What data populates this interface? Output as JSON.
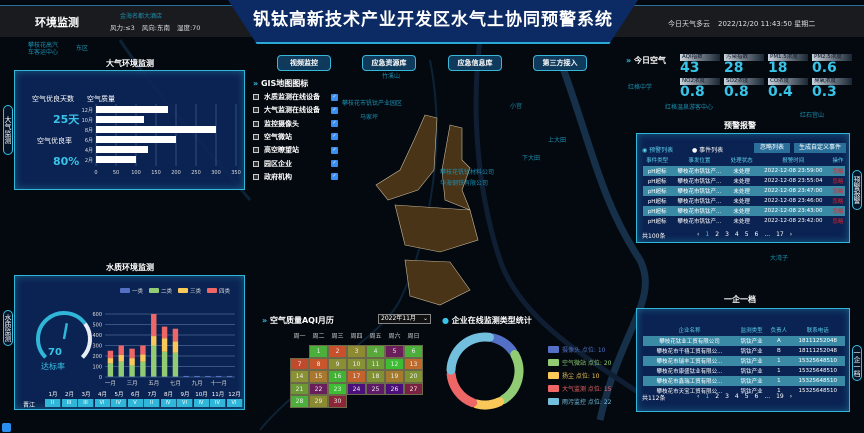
{
  "header": {
    "section": "环境监测",
    "wind_force": "风力:≤3",
    "wind_dir": "风向:东南",
    "humidity": "湿度:70",
    "title": "钒钛高新技术产业开发区水气土协同预警系统",
    "weather": "今日天气多云",
    "datetime": "2022/12/20 11:43:50 星期二"
  },
  "map_labels": [
    "攀枝花高汽车客运中心",
    "东区",
    "金海名都大酒店",
    "红格中学",
    "红格温泉游客中心",
    "攀枝花市钒钛产业园区",
    "红石宫山",
    "竹溪山",
    "小宫",
    "上大田",
    "下大田",
    "马家坪",
    "大湾子",
    "攀枝花钒钛材料公司",
    "华海钢铁有限公司"
  ],
  "top_buttons": [
    "视频监控",
    "应急资源库",
    "应急信息库",
    "第三方接入"
  ],
  "gis": {
    "title": "GIS地图图标",
    "items": [
      "水质监测在线设备",
      "大气监测在线设备",
      "监控摄像头",
      "空气微站",
      "高空瞭望站",
      "园区企业",
      "政府机构"
    ]
  },
  "air": {
    "title": "大气环境监测",
    "side_tab": "大气监测",
    "good_days_label": "空气优良天数",
    "good_days": "25天",
    "good_rate_label": "空气优良率",
    "good_rate": "80%",
    "chart_data": {
      "type": "bar",
      "orientation": "horizontal",
      "title": "空气质量",
      "categories": [
        "12月",
        "10月",
        "8月",
        "6月",
        "4月",
        "2月"
      ],
      "values": [
        180,
        120,
        300,
        200,
        130,
        100
      ],
      "xlim": [
        0,
        350
      ],
      "xticks": [
        "0",
        "50",
        "100",
        "150",
        "200",
        "250",
        "300",
        "350"
      ],
      "grid": true,
      "color": "#ffffff"
    }
  },
  "water": {
    "title": "水质环境监测",
    "side_tab": "水质监测",
    "gauge_value": "70",
    "gauge_percent": 70,
    "gauge_label": "达标率",
    "chart_data": {
      "type": "bar",
      "stacked": true,
      "categories": [
        "一月",
        "二月",
        "三月",
        "四月",
        "五月",
        "六月",
        "七月",
        "八月",
        "九月",
        "十月",
        "十一月",
        "十二月"
      ],
      "xticklabels": [
        "一月",
        "三月",
        "五月",
        "七月",
        "九月",
        "十一月"
      ],
      "ylim": [
        0,
        600
      ],
      "yticks": [
        "0",
        "100",
        "200",
        "300",
        "400",
        "500",
        "600"
      ],
      "legend_position": "top",
      "series": [
        {
          "name": "一类",
          "color": "#5470c6",
          "values": [
            5,
            5,
            5,
            5,
            5,
            5,
            5,
            10,
            10,
            10,
            10,
            10
          ]
        },
        {
          "name": "二类",
          "color": "#91cc75",
          "values": [
            125,
            140,
            105,
            140,
            295,
            235,
            225,
            0,
            0,
            0,
            0,
            0
          ]
        },
        {
          "name": "三类",
          "color": "#fac858",
          "values": [
            50,
            65,
            70,
            70,
            90,
            130,
            110,
            0,
            0,
            0,
            0,
            0
          ]
        },
        {
          "name": "四类",
          "color": "#ee6666",
          "values": [
            70,
            90,
            90,
            85,
            210,
            110,
            120,
            0,
            0,
            0,
            0,
            0
          ]
        }
      ]
    },
    "station": "晋江",
    "months": [
      "1月",
      "2月",
      "3月",
      "4月",
      "5月",
      "6月",
      "7月",
      "8月",
      "9月",
      "10月",
      "11月",
      "12月"
    ],
    "grades": [
      "II",
      "III",
      "III",
      "VI",
      "IV",
      "V",
      "II",
      "IV",
      "VI",
      "IV",
      "IV",
      "VI"
    ]
  },
  "calendar": {
    "title": "空气质量AQI月历",
    "month": "2022年11月",
    "weekdays": [
      "周一",
      "周二",
      "周三",
      "周四",
      "周五",
      "周六",
      "周日"
    ],
    "first_weekday": 1,
    "days": [
      {
        "d": "1",
        "c": "#4caf3c"
      },
      {
        "d": "2",
        "c": "#c8502a"
      },
      {
        "d": "3",
        "c": "#8e8a32"
      },
      {
        "d": "4",
        "c": "#58a83a"
      },
      {
        "d": "5",
        "c": "#6a1f5a"
      },
      {
        "d": "6",
        "c": "#4caf3c"
      },
      {
        "d": "7",
        "c": "#c04a2e"
      },
      {
        "d": "8",
        "c": "#c8562a"
      },
      {
        "d": "9",
        "c": "#8a8e34"
      },
      {
        "d": "10",
        "c": "#869034"
      },
      {
        "d": "11",
        "c": "#6e9a36"
      },
      {
        "d": "12",
        "c": "#3cbd32"
      },
      {
        "d": "13",
        "c": "#c06a2a"
      },
      {
        "d": "14",
        "c": "#8a9034"
      },
      {
        "d": "15",
        "c": "#a8782e"
      },
      {
        "d": "16",
        "c": "#42b134"
      },
      {
        "d": "17",
        "c": "#c2622c"
      },
      {
        "d": "18",
        "c": "#829034"
      },
      {
        "d": "19",
        "c": "#a47a2e"
      },
      {
        "d": "20",
        "c": "#7e9234"
      },
      {
        "d": "21",
        "c": "#6c9836"
      },
      {
        "d": "22",
        "c": "#6a1f5a"
      },
      {
        "d": "23",
        "c": "#3cbd32"
      },
      {
        "d": "24",
        "c": "#4a0f78"
      },
      {
        "d": "25",
        "c": "#5e1a66"
      },
      {
        "d": "26",
        "c": "#4a0f78"
      },
      {
        "d": "27",
        "c": "#7a2040"
      },
      {
        "d": "28",
        "c": "#4caf3c"
      },
      {
        "d": "29",
        "c": "#8a8a30"
      },
      {
        "d": "30",
        "c": "#8a2638"
      }
    ]
  },
  "enterprise_stats": {
    "title": "企业在线监测类型统计",
    "chart_data": {
      "type": "pie",
      "donut": true,
      "legend_position": "right",
      "series": [
        {
          "name": "摄像头 点位: 10",
          "value": 10,
          "color": "#5470c6"
        },
        {
          "name": "空气微站 点位: 20",
          "value": 20,
          "color": "#91cc75"
        },
        {
          "name": "扬尘 点位: 10",
          "value": 10,
          "color": "#fac858"
        },
        {
          "name": "大气监测 点位: 15",
          "value": 15,
          "color": "#ee6666"
        },
        {
          "name": "雨污监控 点位: 22",
          "value": 22,
          "color": "#73c0de"
        }
      ]
    }
  },
  "today_air": {
    "title": "今日空气",
    "items": [
      {
        "label": "AQI指数",
        "value": "43"
      },
      {
        "label": "污染指数",
        "value": "28"
      },
      {
        "label": "PM1.5浓度",
        "value": "18"
      },
      {
        "label": "PM2.5浓度",
        "value": "0.6"
      },
      {
        "label": "NO2浓度",
        "value": "0.8"
      },
      {
        "label": "SO2浓度",
        "value": "0.8"
      },
      {
        "label": "CO浓度",
        "value": "0.4"
      },
      {
        "label": "臭氧浓度",
        "value": "0.3"
      }
    ]
  },
  "alarm": {
    "title": "预警报警",
    "side_tab": "预警报警",
    "radio_alarm": "预警列表",
    "radio_event": "事件列表",
    "ignore_btn": "忽略列表",
    "custom_btn": "生成自定义事件",
    "columns": [
      "事件类型",
      "事发位置",
      "处理状态",
      "报警时间",
      "操作"
    ],
    "rows": [
      [
        "pH超标",
        "攀枝花市钒钛产...",
        "未处理",
        "2022-12-08 23:59:00",
        "忽略"
      ],
      [
        "pH超标",
        "攀枝花市钒钛产...",
        "未处理",
        "2022-12-08 23:55:04",
        "忽略"
      ],
      [
        "pH超标",
        "攀枝花市钒钛产...",
        "未处理",
        "2022-12-08 23:47:00",
        "忽略"
      ],
      [
        "pH超标",
        "攀枝花市钒钛产...",
        "未处理",
        "2022-12-08 23:46:00",
        "忽略"
      ],
      [
        "pH超标",
        "攀枝花市钒钛产...",
        "未处理",
        "2022-12-08 23:43:00",
        "忽略"
      ],
      [
        "pH超标",
        "攀枝花市钒钛产...",
        "未处理",
        "2022-12-08 23:42:00",
        "忽略"
      ]
    ],
    "total": "共100条",
    "pages": [
      "1",
      "2",
      "3",
      "4",
      "5",
      "6",
      "...",
      "17"
    ]
  },
  "enterprise": {
    "title": "一企一档",
    "side_tab": "一企一档",
    "columns": [
      "企业名称",
      "监测类型",
      "负责人",
      "联系电话"
    ],
    "rows": [
      [
        "攀枝花钛业工贸有限公司",
        "钒钛产业",
        "A",
        "18111252048"
      ],
      [
        "攀枝花市千禧工贸有限公...",
        "钒钛产业",
        "B",
        "18111252048"
      ],
      [
        "攀枝花市瑞丰工贸有限公...",
        "钒钛产业",
        "1",
        "15325648510"
      ],
      [
        "攀枝花市康盛钛业有限公...",
        "钒钛产业",
        "1",
        "15325648510"
      ],
      [
        "攀枝花市鑫瑞工贸有限公...",
        "钒钛产业",
        "1",
        "15325648510"
      ],
      [
        "攀枝花市天宝工贸有限公...",
        "钒钛产业",
        "1",
        "15325648510"
      ]
    ],
    "total": "共112条",
    "pages": [
      "1",
      "2",
      "3",
      "4",
      "5",
      "6",
      "...",
      "19"
    ]
  }
}
